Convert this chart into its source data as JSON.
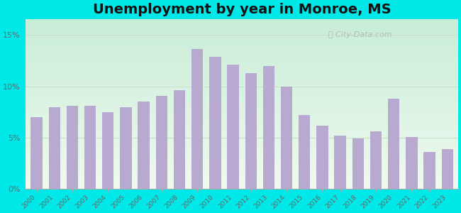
{
  "title": "Unemployment by year in Monroe, MS",
  "years": [
    2000,
    2001,
    2002,
    2003,
    2004,
    2005,
    2006,
    2007,
    2008,
    2009,
    2010,
    2011,
    2012,
    2013,
    2014,
    2015,
    2016,
    2017,
    2018,
    2019,
    2020,
    2021,
    2022,
    2023
  ],
  "values": [
    7.0,
    8.0,
    8.1,
    8.1,
    7.5,
    8.0,
    8.5,
    9.1,
    9.6,
    13.6,
    12.9,
    12.1,
    11.3,
    12.0,
    10.0,
    7.2,
    6.2,
    5.2,
    4.9,
    5.6,
    8.8,
    5.1,
    3.6,
    3.9
  ],
  "bar_color": "#b8a9d0",
  "outer_bg": "#00e8e8",
  "plot_bg_top": "#c8edd8",
  "plot_bg_bottom": "#f0faf0",
  "yticks": [
    0,
    5,
    10,
    15
  ],
  "ylabels": [
    "0%",
    "5%",
    "10%",
    "15%"
  ],
  "ylim": [
    0,
    16.5
  ],
  "title_fontsize": 14,
  "watermark": "City-Data.com",
  "grid_color": "#ccddcc",
  "tick_color": "#888888",
  "label_color": "#666666"
}
